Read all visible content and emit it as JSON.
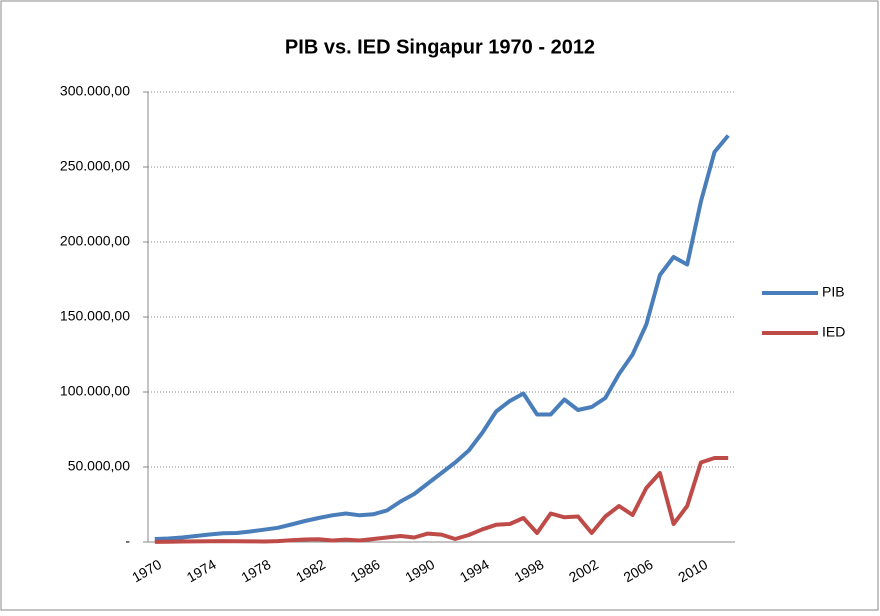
{
  "chart_data": {
    "type": "line",
    "title": "PIB vs. IED Singapur 1970 - 2012",
    "categories": [
      "1970",
      null,
      null,
      null,
      "1974",
      null,
      null,
      null,
      "1978",
      null,
      null,
      null,
      "1982",
      null,
      null,
      null,
      "1986",
      null,
      null,
      null,
      "1990",
      null,
      null,
      null,
      "1994",
      null,
      null,
      null,
      "1998",
      null,
      null,
      null,
      "2002",
      null,
      null,
      null,
      "2006",
      null,
      null,
      null,
      "2010",
      null,
      null
    ],
    "series": [
      {
        "name": "PIB",
        "color": "#4a7ebb",
        "values": [
          2000,
          2300,
          3000,
          4000,
          5000,
          5800,
          6000,
          7000,
          8200,
          9500,
          11700,
          14000,
          16000,
          17800,
          19000,
          17800,
          18500,
          21000,
          27000,
          32000,
          39000,
          46000,
          53000,
          61000,
          73000,
          87000,
          94000,
          99000,
          85000,
          85000,
          95000,
          88000,
          90000,
          96000,
          112000,
          125000,
          145000,
          178000,
          190000,
          185000,
          227000,
          260000,
          271000
        ]
      },
      {
        "name": "IED",
        "color": "#be4b48",
        "values": [
          100,
          200,
          300,
          400,
          500,
          600,
          500,
          400,
          300,
          600,
          1200,
          1700,
          1800,
          1000,
          1600,
          1000,
          2000,
          3000,
          4000,
          3000,
          5600,
          4900,
          2000,
          4700,
          8500,
          11500,
          12000,
          16000,
          6000,
          19000,
          16500,
          17000,
          6000,
          17000,
          24000,
          18000,
          36000,
          46000,
          12000,
          24000,
          53000,
          56000,
          56000
        ]
      }
    ],
    "ylim": [
      0,
      300000
    ],
    "yticks": [
      {
        "value": 0,
        "label": "-"
      },
      {
        "value": 50000,
        "label": "50.000,00"
      },
      {
        "value": 100000,
        "label": "100.000,00"
      },
      {
        "value": 150000,
        "label": "150.000,00"
      },
      {
        "value": 200000,
        "label": "200.000,00"
      },
      {
        "value": 250000,
        "label": "250.000,00"
      },
      {
        "value": 300000,
        "label": "300.000,00"
      }
    ],
    "grid": true,
    "legend": "right"
  }
}
